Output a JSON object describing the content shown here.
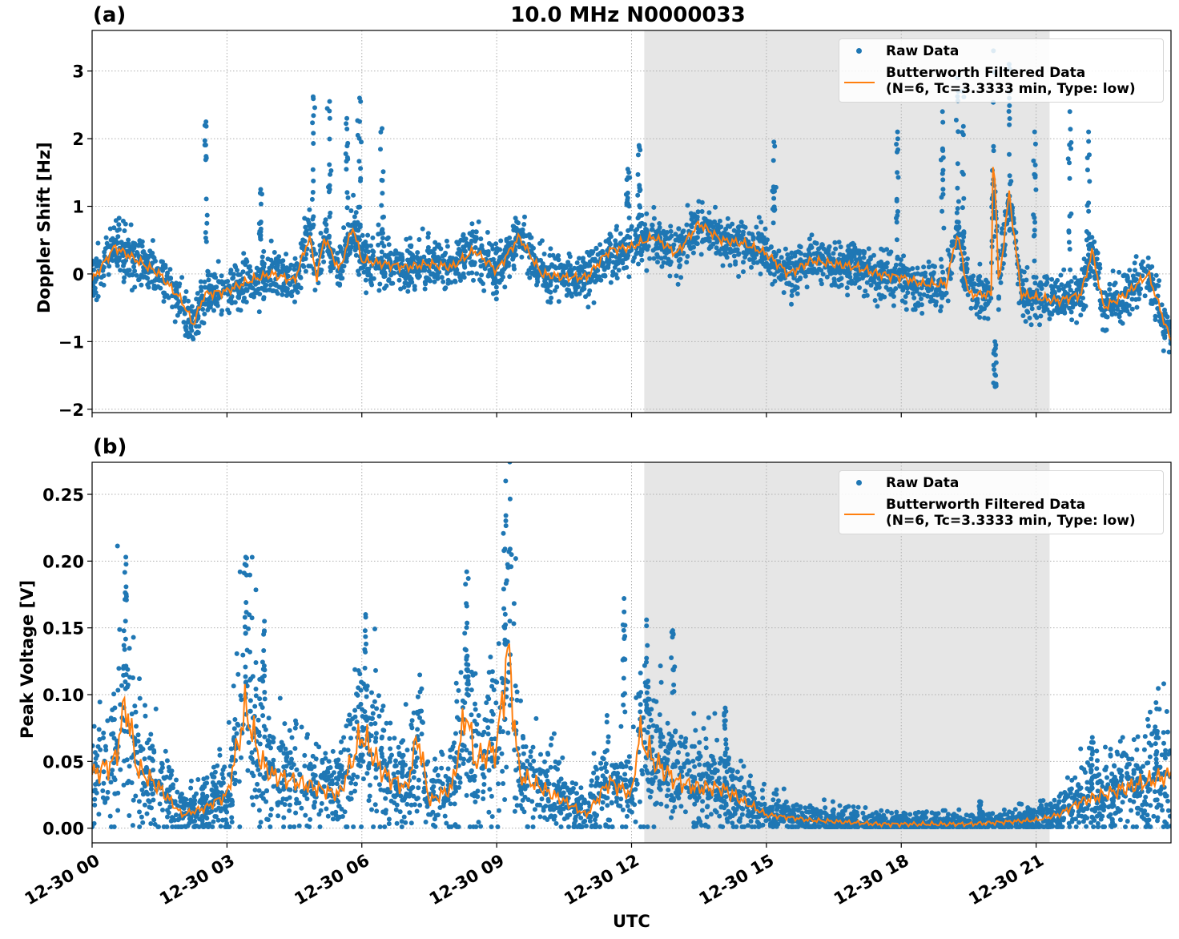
{
  "title": "10.0 MHz N0000033",
  "xlabel": "UTC",
  "colors": {
    "raw": "#1f77b4",
    "filtered": "#ff7f0e",
    "shade": "#e6e6e6",
    "grid": "#b0b0b0"
  },
  "legend": {
    "raw": "Raw Data",
    "filtered_line1": "Butterworth Filtered Data",
    "filtered_line2": "(N=6, Tc=3.3333 min, Type: low)",
    "placement": "top-right"
  },
  "x_ticks": [
    "12-30 00",
    "12-30 03",
    "12-30 06",
    "12-30 09",
    "12-30 12",
    "12-30 15",
    "12-30 18",
    "12-30 21"
  ],
  "chart_data": [
    {
      "type": "scatter+line",
      "panel_label": "(a)",
      "ylabel": "Doppler Shift [Hz]",
      "xlim": [
        "12-30 00:00",
        "12-31 00:00"
      ],
      "ylim": [
        -2.05,
        3.6
      ],
      "y_ticks": [
        -2,
        -1,
        0,
        1,
        2,
        3
      ],
      "y_tick_labels": [
        "−2",
        "−1",
        "0",
        "1",
        "2",
        "3"
      ],
      "grid": true,
      "shaded_interval": [
        "12-30 12:17",
        "12-30 21:18"
      ],
      "filtered": {
        "x": [
          "00:00",
          "00:30",
          "01:00",
          "01:30",
          "02:00",
          "02:15",
          "02:30",
          "03:00",
          "03:30",
          "04:00",
          "04:30",
          "04:50",
          "05:00",
          "05:10",
          "05:30",
          "05:48",
          "06:00",
          "06:30",
          "07:00",
          "07:30",
          "08:00",
          "08:30",
          "09:00",
          "09:30",
          "10:00",
          "10:30",
          "11:00",
          "11:30",
          "12:00",
          "12:30",
          "13:00",
          "13:30",
          "14:00",
          "14:30",
          "15:00",
          "15:30",
          "16:00",
          "16:30",
          "17:00",
          "17:30",
          "18:00",
          "18:30",
          "19:00",
          "19:15",
          "19:30",
          "20:00",
          "20:03",
          "20:10",
          "20:24",
          "20:40",
          "21:00",
          "21:30",
          "22:00",
          "22:15",
          "22:30",
          "23:00",
          "23:30",
          "24:00"
        ],
        "y": [
          -0.1,
          0.4,
          0.2,
          0.0,
          -0.4,
          -0.75,
          -0.3,
          -0.25,
          -0.1,
          0.0,
          -0.1,
          0.55,
          -0.05,
          0.55,
          0.05,
          0.7,
          0.2,
          0.15,
          0.1,
          0.15,
          0.1,
          0.35,
          0.05,
          0.55,
          0.0,
          -0.05,
          -0.05,
          0.35,
          0.4,
          0.55,
          0.3,
          0.75,
          0.5,
          0.45,
          0.3,
          0.0,
          0.2,
          0.15,
          0.1,
          0.0,
          -0.05,
          -0.15,
          -0.15,
          0.6,
          -0.3,
          -0.3,
          2.05,
          -0.2,
          1.2,
          -0.3,
          -0.35,
          -0.4,
          -0.3,
          0.35,
          -0.5,
          -0.3,
          0.0,
          -1.0
        ]
      },
      "raw_spread": 0.35,
      "raw_outlier_columns": [
        {
          "t": "02:32",
          "min": 0.3,
          "max": 2.25
        },
        {
          "t": "03:45",
          "min": 0.5,
          "max": 1.25
        },
        {
          "t": "04:55",
          "min": 0.6,
          "max": 2.62
        },
        {
          "t": "05:17",
          "min": 0.8,
          "max": 2.55
        },
        {
          "t": "05:40",
          "min": 0.5,
          "max": 2.3
        },
        {
          "t": "05:57",
          "min": 0.5,
          "max": 2.6
        },
        {
          "t": "06:27",
          "min": 0.5,
          "max": 2.15
        },
        {
          "t": "11:55",
          "min": 0.8,
          "max": 1.55
        },
        {
          "t": "12:10",
          "min": 0.6,
          "max": 1.9
        },
        {
          "t": "15:10",
          "min": 0.5,
          "max": 1.95
        },
        {
          "t": "17:55",
          "min": 0.5,
          "max": 2.1
        },
        {
          "t": "18:55",
          "min": 0.4,
          "max": 2.4
        },
        {
          "t": "19:15",
          "min": 0.3,
          "max": 2.9
        },
        {
          "t": "19:22",
          "min": 0.3,
          "max": 2.7
        },
        {
          "t": "20:03",
          "min": 0.0,
          "max": 3.3
        },
        {
          "t": "20:24",
          "min": 0.0,
          "max": 3.1
        },
        {
          "t": "20:05",
          "min": -1.8,
          "max": -1.0
        },
        {
          "t": "20:58",
          "min": 0.0,
          "max": 2.1
        },
        {
          "t": "21:45",
          "min": 0.0,
          "max": 2.4
        },
        {
          "t": "22:10",
          "min": 0.0,
          "max": 2.1
        }
      ]
    },
    {
      "type": "scatter+line",
      "panel_label": "(b)",
      "ylabel": "Peak Voltage [V]",
      "xlim": [
        "12-30 00:00",
        "12-31 00:00"
      ],
      "ylim": [
        -0.011,
        0.274
      ],
      "y_ticks": [
        0,
        0.05,
        0.1,
        0.15,
        0.2,
        0.25
      ],
      "y_tick_labels": [
        "0.00",
        "0.05",
        "0.10",
        "0.15",
        "0.20",
        "0.25"
      ],
      "grid": true,
      "shaded_interval": [
        "12-30 12:17",
        "12-30 21:18"
      ],
      "filtered": {
        "x": [
          "00:00",
          "00:30",
          "00:45",
          "01:00",
          "01:30",
          "02:00",
          "02:30",
          "03:00",
          "03:25",
          "03:45",
          "04:00",
          "04:30",
          "05:00",
          "05:30",
          "06:00",
          "06:30",
          "07:00",
          "07:15",
          "07:30",
          "08:00",
          "08:20",
          "08:30",
          "09:00",
          "09:15",
          "09:30",
          "10:00",
          "10:30",
          "11:00",
          "11:30",
          "12:00",
          "12:10",
          "12:30",
          "13:00",
          "13:30",
          "14:00",
          "14:30",
          "15:00",
          "15:30",
          "16:00",
          "16:30",
          "17:00",
          "17:30",
          "18:00",
          "18:30",
          "19:00",
          "19:30",
          "20:00",
          "20:30",
          "21:00",
          "21:30",
          "22:00",
          "22:30",
          "23:00",
          "23:30",
          "24:00"
        ],
        "y": [
          0.04,
          0.05,
          0.095,
          0.045,
          0.03,
          0.01,
          0.015,
          0.025,
          0.09,
          0.05,
          0.04,
          0.035,
          0.03,
          0.025,
          0.07,
          0.04,
          0.03,
          0.07,
          0.02,
          0.03,
          0.09,
          0.05,
          0.06,
          0.135,
          0.04,
          0.03,
          0.02,
          0.01,
          0.035,
          0.025,
          0.07,
          0.05,
          0.035,
          0.03,
          0.03,
          0.02,
          0.01,
          0.008,
          0.006,
          0.005,
          0.004,
          0.003,
          0.003,
          0.003,
          0.003,
          0.003,
          0.004,
          0.005,
          0.006,
          0.01,
          0.02,
          0.025,
          0.03,
          0.035,
          0.04
        ]
      },
      "raw_spread_relative": 0.9,
      "raw_outlier_columns": [
        {
          "t": "00:45",
          "min": 0.08,
          "max": 0.203
        },
        {
          "t": "03:25",
          "min": 0.1,
          "max": 0.203
        },
        {
          "t": "03:50",
          "min": 0.09,
          "max": 0.155
        },
        {
          "t": "06:05",
          "min": 0.08,
          "max": 0.16
        },
        {
          "t": "08:20",
          "min": 0.1,
          "max": 0.192
        },
        {
          "t": "09:12",
          "min": 0.1,
          "max": 0.26
        },
        {
          "t": "11:50",
          "min": 0.08,
          "max": 0.172
        },
        {
          "t": "12:20",
          "min": 0.08,
          "max": 0.156
        },
        {
          "t": "12:55",
          "min": 0.06,
          "max": 0.148
        },
        {
          "t": "14:05",
          "min": 0.04,
          "max": 0.09
        },
        {
          "t": "19:45",
          "min": 0.005,
          "max": 0.02
        },
        {
          "t": "22:15",
          "min": 0.03,
          "max": 0.068
        },
        {
          "t": "23:40",
          "min": 0.04,
          "max": 0.094
        }
      ]
    }
  ]
}
